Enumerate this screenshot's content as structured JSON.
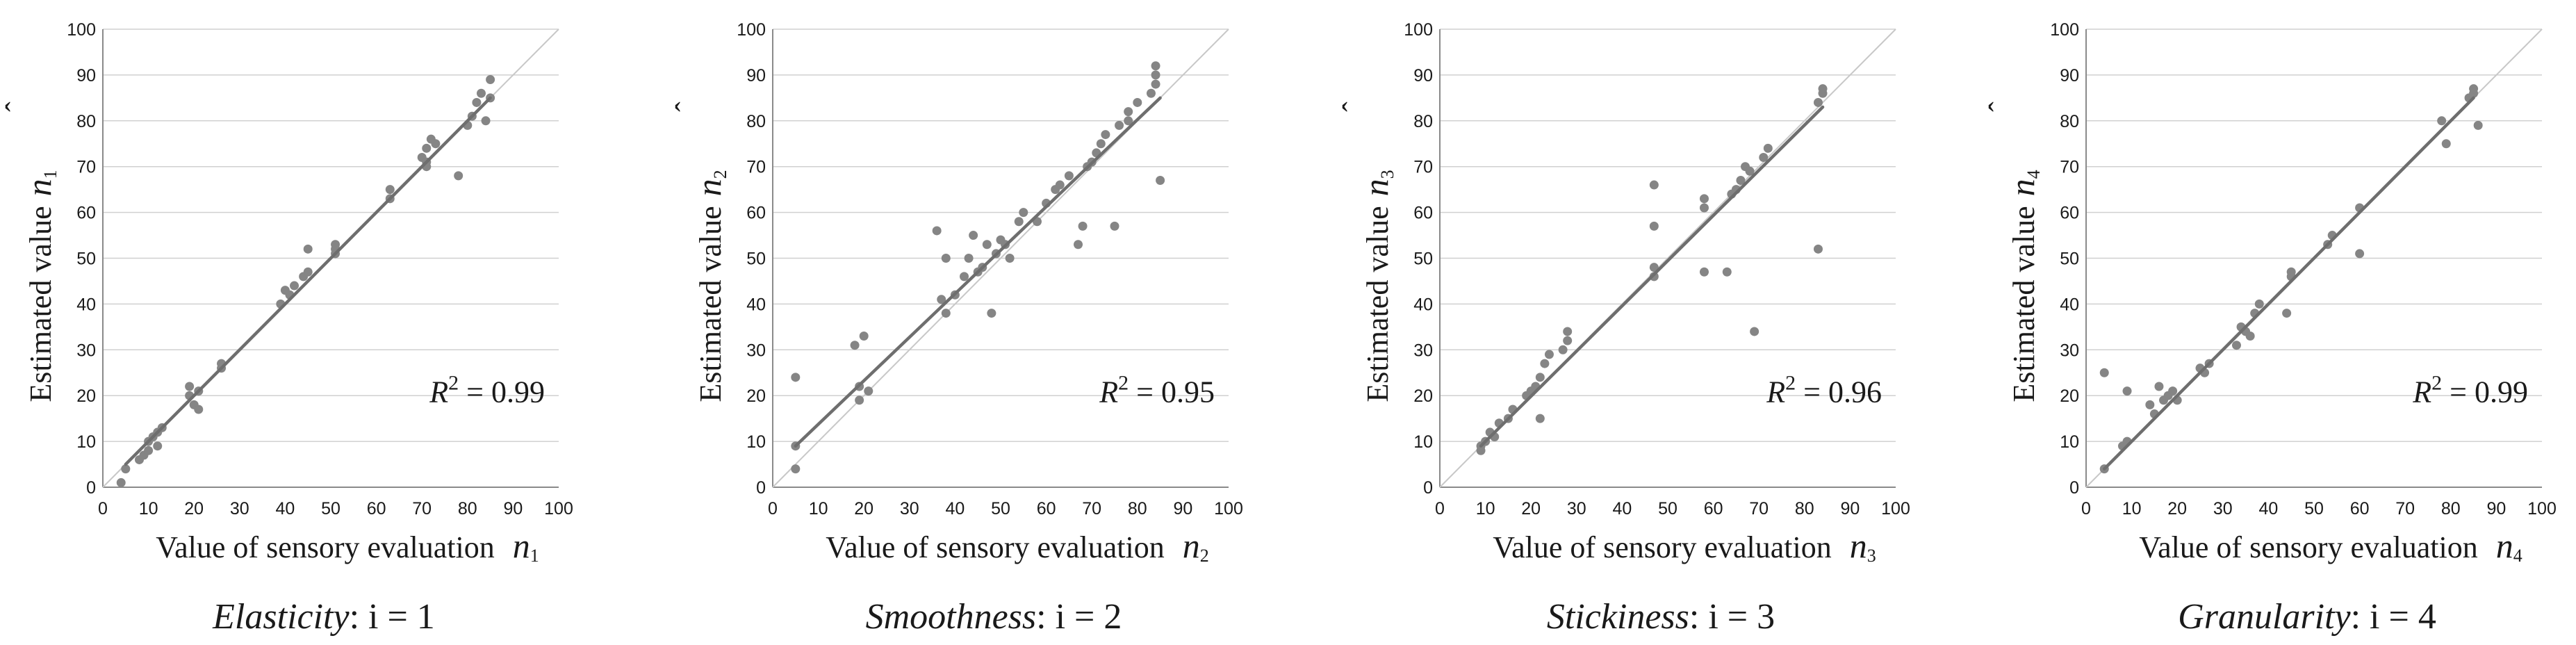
{
  "chart_data": [
    {
      "type": "scatter",
      "ylabel": "Estimated value",
      "ysymbol": "n",
      "ysubscript": "1",
      "xlabel": "Value of sensory evaluation",
      "xsymbol": "n",
      "xsubscript": "1",
      "caption_name": "Elasticity",
      "caption_index": ": i = 1",
      "r2_label": "R",
      "r2_exp": "2",
      "r2_value": " = 0.99",
      "xlim": [
        0,
        100
      ],
      "ylim": [
        0,
        100
      ],
      "xticks": [
        "0",
        "10",
        "20",
        "30",
        "40",
        "50",
        "60",
        "70",
        "80",
        "90",
        "100"
      ],
      "yticks": [
        "0",
        "10",
        "20",
        "30",
        "40",
        "50",
        "60",
        "70",
        "80",
        "90",
        "100"
      ],
      "fit_line": [
        [
          5,
          5
        ],
        [
          85,
          85
        ]
      ],
      "points": [
        [
          4,
          1
        ],
        [
          5,
          4
        ],
        [
          8,
          6
        ],
        [
          9,
          7
        ],
        [
          10,
          8
        ],
        [
          10,
          10
        ],
        [
          11,
          11
        ],
        [
          12,
          12
        ],
        [
          12,
          9
        ],
        [
          13,
          13
        ],
        [
          19,
          22
        ],
        [
          19,
          20
        ],
        [
          20,
          18
        ],
        [
          21,
          17
        ],
        [
          21,
          21
        ],
        [
          26,
          26
        ],
        [
          26,
          27
        ],
        [
          39,
          40
        ],
        [
          40,
          43
        ],
        [
          41,
          42
        ],
        [
          42,
          44
        ],
        [
          44,
          46
        ],
        [
          45,
          47
        ],
        [
          45,
          52
        ],
        [
          51,
          52
        ],
        [
          51,
          53
        ],
        [
          51,
          51
        ],
        [
          63,
          63
        ],
        [
          63,
          65
        ],
        [
          70,
          72
        ],
        [
          71,
          70
        ],
        [
          71,
          71
        ],
        [
          71,
          74
        ],
        [
          72,
          76
        ],
        [
          73,
          75
        ],
        [
          78,
          68
        ],
        [
          80,
          79
        ],
        [
          81,
          81
        ],
        [
          82,
          84
        ],
        [
          83,
          86
        ],
        [
          84,
          80
        ],
        [
          85,
          85
        ],
        [
          85,
          89
        ]
      ]
    },
    {
      "type": "scatter",
      "ylabel": "Estimated value",
      "ysymbol": "n",
      "ysubscript": "2",
      "xlabel": "Value of sensory evaluation",
      "xsymbol": "n",
      "xsubscript": "2",
      "caption_name": "Smoothness",
      "caption_index": ": i = 2",
      "r2_label": "R",
      "r2_exp": "2",
      "r2_value": " = 0.95",
      "xlim": [
        0,
        100
      ],
      "ylim": [
        0,
        100
      ],
      "xticks": [
        "0",
        "10",
        "20",
        "30",
        "40",
        "50",
        "60",
        "70",
        "80",
        "90",
        "100"
      ],
      "yticks": [
        "0",
        "10",
        "20",
        "30",
        "40",
        "50",
        "60",
        "70",
        "80",
        "90",
        "100"
      ],
      "fit_line": [
        [
          5,
          9
        ],
        [
          85,
          85
        ]
      ],
      "points": [
        [
          5,
          24
        ],
        [
          5,
          9
        ],
        [
          5,
          4
        ],
        [
          18,
          31
        ],
        [
          19,
          22
        ],
        [
          19,
          19
        ],
        [
          20,
          33
        ],
        [
          21,
          21
        ],
        [
          36,
          56
        ],
        [
          37,
          41
        ],
        [
          38,
          38
        ],
        [
          38,
          50
        ],
        [
          40,
          42
        ],
        [
          42,
          46
        ],
        [
          43,
          50
        ],
        [
          44,
          55
        ],
        [
          45,
          47
        ],
        [
          46,
          48
        ],
        [
          47,
          53
        ],
        [
          48,
          38
        ],
        [
          49,
          51
        ],
        [
          50,
          54
        ],
        [
          51,
          53
        ],
        [
          52,
          50
        ],
        [
          54,
          58
        ],
        [
          55,
          60
        ],
        [
          58,
          58
        ],
        [
          60,
          62
        ],
        [
          62,
          65
        ],
        [
          63,
          66
        ],
        [
          65,
          68
        ],
        [
          67,
          53
        ],
        [
          68,
          57
        ],
        [
          69,
          70
        ],
        [
          70,
          71
        ],
        [
          71,
          73
        ],
        [
          72,
          75
        ],
        [
          73,
          77
        ],
        [
          75,
          57
        ],
        [
          76,
          79
        ],
        [
          78,
          80
        ],
        [
          78,
          82
        ],
        [
          80,
          84
        ],
        [
          83,
          86
        ],
        [
          84,
          88
        ],
        [
          84,
          90
        ],
        [
          84,
          92
        ],
        [
          85,
          67
        ]
      ]
    },
    {
      "type": "scatter",
      "ylabel": "Estimated value",
      "ysymbol": "n",
      "ysubscript": "3",
      "xlabel": "Value of sensory evaluation",
      "xsymbol": "n",
      "xsubscript": "3",
      "caption_name": "Stickiness",
      "caption_index": ": i = 3",
      "r2_label": "R",
      "r2_exp": "2",
      "r2_value": " = 0.96",
      "xlim": [
        0,
        100
      ],
      "ylim": [
        0,
        100
      ],
      "xticks": [
        "0",
        "10",
        "20",
        "30",
        "40",
        "50",
        "60",
        "70",
        "80",
        "90",
        "100"
      ],
      "yticks": [
        "0",
        "10",
        "20",
        "30",
        "40",
        "50",
        "60",
        "70",
        "80",
        "90",
        "100"
      ],
      "fit_line": [
        [
          9,
          9
        ],
        [
          84,
          83
        ]
      ],
      "points": [
        [
          9,
          8
        ],
        [
          9,
          9
        ],
        [
          10,
          10
        ],
        [
          11,
          12
        ],
        [
          12,
          11
        ],
        [
          13,
          14
        ],
        [
          15,
          15
        ],
        [
          16,
          17
        ],
        [
          19,
          20
        ],
        [
          20,
          21
        ],
        [
          21,
          22
        ],
        [
          22,
          24
        ],
        [
          22,
          15
        ],
        [
          23,
          27
        ],
        [
          24,
          29
        ],
        [
          27,
          30
        ],
        [
          28,
          32
        ],
        [
          28,
          34
        ],
        [
          47,
          46
        ],
        [
          47,
          48
        ],
        [
          47,
          57
        ],
        [
          47,
          66
        ],
        [
          58,
          61
        ],
        [
          58,
          63
        ],
        [
          58,
          47
        ],
        [
          63,
          47
        ],
        [
          64,
          64
        ],
        [
          65,
          65
        ],
        [
          66,
          67
        ],
        [
          67,
          70
        ],
        [
          68,
          69
        ],
        [
          69,
          34
        ],
        [
          71,
          72
        ],
        [
          72,
          74
        ],
        [
          83,
          84
        ],
        [
          84,
          86
        ],
        [
          84,
          87
        ],
        [
          83,
          52
        ]
      ]
    },
    {
      "type": "scatter",
      "ylabel": "Estimated value",
      "ysymbol": "n",
      "ysubscript": "4",
      "xlabel": "Value of sensory evaluation",
      "xsymbol": "n",
      "xsubscript": "4",
      "caption_name": "Granularity",
      "caption_index": ": i = 4",
      "r2_label": "R",
      "r2_exp": "2",
      "r2_value": " = 0.99",
      "xlim": [
        0,
        100
      ],
      "ylim": [
        0,
        100
      ],
      "xticks": [
        "0",
        "10",
        "20",
        "30",
        "40",
        "50",
        "60",
        "70",
        "80",
        "90",
        "100"
      ],
      "yticks": [
        "0",
        "10",
        "20",
        "30",
        "40",
        "50",
        "60",
        "70",
        "80",
        "90",
        "100"
      ],
      "fit_line": [
        [
          4,
          4
        ],
        [
          85,
          85
        ]
      ],
      "points": [
        [
          4,
          4
        ],
        [
          4,
          25
        ],
        [
          8,
          9
        ],
        [
          9,
          10
        ],
        [
          9,
          21
        ],
        [
          14,
          18
        ],
        [
          15,
          16
        ],
        [
          16,
          22
        ],
        [
          17,
          19
        ],
        [
          18,
          20
        ],
        [
          19,
          21
        ],
        [
          20,
          19
        ],
        [
          25,
          26
        ],
        [
          26,
          25
        ],
        [
          27,
          27
        ],
        [
          33,
          31
        ],
        [
          34,
          35
        ],
        [
          35,
          34
        ],
        [
          36,
          33
        ],
        [
          37,
          38
        ],
        [
          38,
          40
        ],
        [
          44,
          38
        ],
        [
          45,
          46
        ],
        [
          45,
          47
        ],
        [
          53,
          53
        ],
        [
          54,
          55
        ],
        [
          60,
          61
        ],
        [
          60,
          51
        ],
        [
          78,
          80
        ],
        [
          79,
          75
        ],
        [
          84,
          85
        ],
        [
          85,
          86
        ],
        [
          85,
          87
        ],
        [
          86,
          79
        ]
      ]
    }
  ]
}
